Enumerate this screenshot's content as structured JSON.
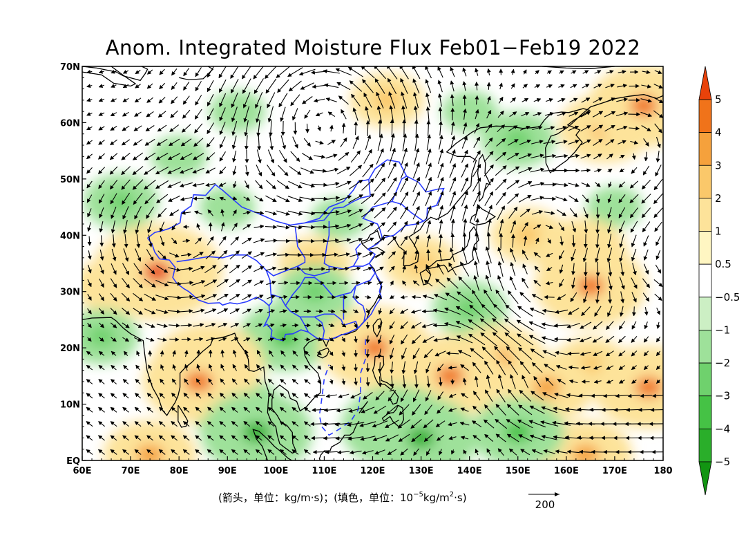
{
  "title": "Anom. Integrated Moisture Flux Feb01−Feb19 2022",
  "footer": {
    "arrows": "(箭头，单位：kg/m·s)；(填色，单位：10",
    "exp": "−5",
    "unit_tail": "kg/m",
    "exp2": "2",
    "unit_end": "·s)"
  },
  "reference_vector": {
    "value": 200,
    "label": "200"
  },
  "axes": {
    "lon_labels": [
      "60E",
      "70E",
      "80E",
      "90E",
      "100E",
      "110E",
      "120E",
      "130E",
      "140E",
      "150E",
      "160E",
      "170E",
      "180"
    ],
    "lat_labels": [
      "EQ",
      "10N",
      "20N",
      "30N",
      "40N",
      "50N",
      "60N",
      "70N"
    ],
    "lon_range": [
      60,
      180
    ],
    "lat_range": [
      0,
      70
    ]
  },
  "colorbar": {
    "tick_labels": [
      "5",
      "4",
      "3",
      "2",
      "1",
      "0.5",
      "−0.5",
      "−1",
      "−2",
      "−3",
      "−4",
      "−5"
    ],
    "colors_top_to_bottom": [
      "#e8420a",
      "#f0731a",
      "#f5a13c",
      "#fac86a",
      "#fde39a",
      "#fff6c2",
      "#ffffff",
      "#ccefc4",
      "#9ee19a",
      "#6fd16d",
      "#45c245",
      "#2aae2a",
      "#129512"
    ]
  },
  "anomaly_regions": [
    {
      "lon": 75.5,
      "lat": 33.5,
      "level": 5
    },
    {
      "lon": 66,
      "lat": 31,
      "level": 2
    },
    {
      "lon": 86,
      "lat": 17,
      "level": 4
    },
    {
      "lon": 84,
      "lat": 14,
      "level": 4
    },
    {
      "lon": 120.5,
      "lat": 20,
      "level": 4
    },
    {
      "lon": 165,
      "lat": 31,
      "level": 4
    },
    {
      "lon": 163,
      "lat": 37,
      "level": 3
    },
    {
      "lon": 152,
      "lat": 40,
      "level": 2
    },
    {
      "lon": 176,
      "lat": 63,
      "level": 4
    },
    {
      "lon": 168,
      "lat": 59,
      "level": 3
    },
    {
      "lon": 177,
      "lat": 13,
      "level": 4
    },
    {
      "lon": 136,
      "lat": 15,
      "level": 4
    },
    {
      "lon": 146,
      "lat": 18,
      "level": 3
    },
    {
      "lon": 156,
      "lat": 13,
      "level": 3
    },
    {
      "lon": 165,
      "lat": 17,
      "level": 2
    },
    {
      "lon": 74,
      "lat": 1,
      "level": 3
    },
    {
      "lon": 164,
      "lat": 1,
      "level": 3
    },
    {
      "lon": 130,
      "lat": 35,
      "level": 2
    },
    {
      "lon": 123,
      "lat": 64,
      "level": 2
    },
    {
      "lon": 108,
      "lat": 35,
      "level": 2
    },
    {
      "lon": 96,
      "lat": 5,
      "level": -4
    },
    {
      "lon": 92,
      "lat": 9,
      "level": -3
    },
    {
      "lon": 102,
      "lat": 22,
      "level": -3
    },
    {
      "lon": 108,
      "lat": 27,
      "level": -2
    },
    {
      "lon": 125,
      "lat": 6,
      "level": -4
    },
    {
      "lon": 150,
      "lat": 5,
      "level": -3
    },
    {
      "lon": 130,
      "lat": 4,
      "level": -4
    },
    {
      "lon": 140,
      "lat": 27,
      "level": -2
    },
    {
      "lon": 150,
      "lat": 57,
      "level": -2
    },
    {
      "lon": 140,
      "lat": 62,
      "level": -1
    },
    {
      "lon": 68,
      "lat": 46,
      "level": -2
    },
    {
      "lon": 64,
      "lat": 22,
      "level": -2
    },
    {
      "lon": 113,
      "lat": 43,
      "level": -1
    },
    {
      "lon": 108,
      "lat": 30,
      "level": -2
    },
    {
      "lon": 90,
      "lat": 45,
      "level": -1
    },
    {
      "lon": 170,
      "lat": 45,
      "level": -1
    },
    {
      "lon": 80,
      "lat": 54,
      "level": -1
    },
    {
      "lon": 92,
      "lat": 62,
      "level": -1
    }
  ]
}
